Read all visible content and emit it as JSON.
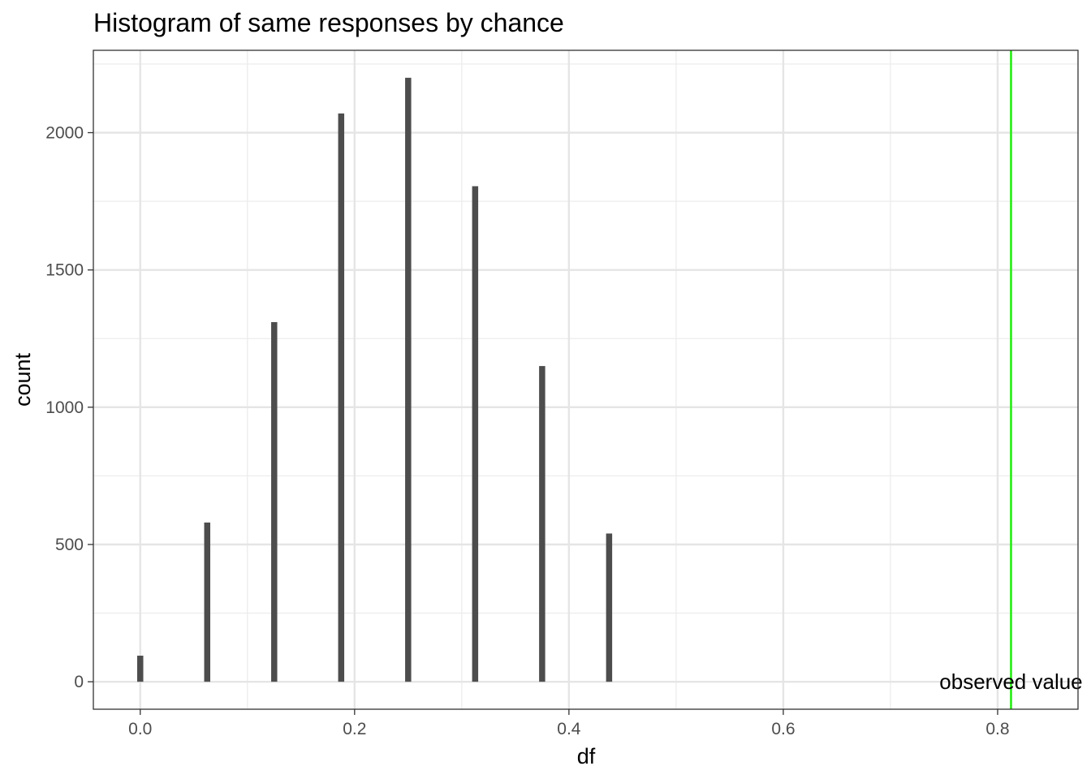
{
  "chart_data": {
    "type": "bar",
    "title": "Histogram of same responses by chance",
    "xlabel": "df",
    "ylabel": "count",
    "x": [
      0.0,
      0.0625,
      0.125,
      0.1875,
      0.25,
      0.3125,
      0.375,
      0.4375
    ],
    "values": [
      95,
      580,
      1310,
      2070,
      2200,
      1805,
      1150,
      540
    ],
    "xlim": [
      -0.04375,
      0.875
    ],
    "ylim": [
      -100,
      2300
    ],
    "x_ticks": [
      {
        "value": 0.0,
        "label": "0.0"
      },
      {
        "value": 0.2,
        "label": "0.2"
      },
      {
        "value": 0.4,
        "label": "0.4"
      },
      {
        "value": 0.6,
        "label": "0.6"
      },
      {
        "value": 0.8,
        "label": "0.8"
      }
    ],
    "y_ticks": [
      {
        "value": 0,
        "label": "0"
      },
      {
        "value": 500,
        "label": "500"
      },
      {
        "value": 1000,
        "label": "1000"
      },
      {
        "value": 1500,
        "label": "1500"
      },
      {
        "value": 2000,
        "label": "2000"
      }
    ],
    "x_minor_grid": [
      0.1,
      0.3,
      0.5,
      0.7
    ],
    "y_minor_grid": [
      250,
      750,
      1250,
      1750,
      2250
    ],
    "grid": true,
    "bar_color": "#4d4d4d",
    "reference_line": {
      "x": 0.8125,
      "color": "#33ee22",
      "label": "observed value"
    }
  }
}
